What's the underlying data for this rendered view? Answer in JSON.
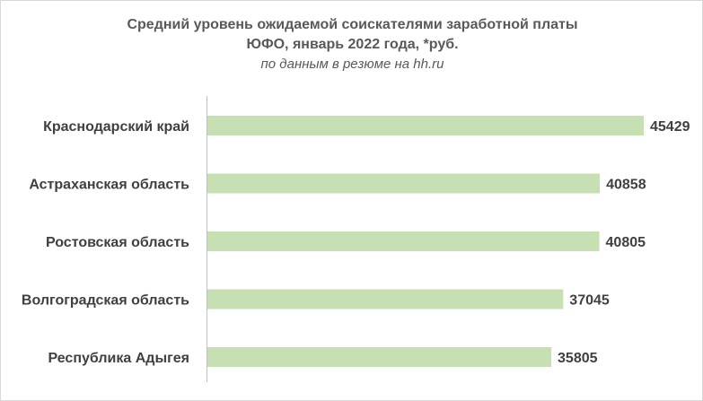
{
  "chart_data": {
    "type": "bar",
    "orientation": "horizontal",
    "title_lines": [
      "Средний уровень ожидаемой соискателями заработной платы",
      "ЮФО, январь 2022 года, *руб."
    ],
    "subtitle": "по данным в резюме на hh.ru",
    "categories": [
      "Краснодарский край",
      "Астраханская область",
      "Ростовская область",
      "Волгоградская область",
      "Республика Адыгея"
    ],
    "values": [
      45429,
      40858,
      40805,
      37045,
      35805
    ],
    "value_labels": [
      "45429",
      "40858",
      "40805",
      "37045",
      "35805"
    ],
    "xlim": [
      0,
      47000
    ],
    "grid": false,
    "legend": "none",
    "bar_color": "#c6e0b4",
    "axis_color": "#bfbfbf",
    "text_color": "#404040",
    "title_color": "#595959"
  }
}
